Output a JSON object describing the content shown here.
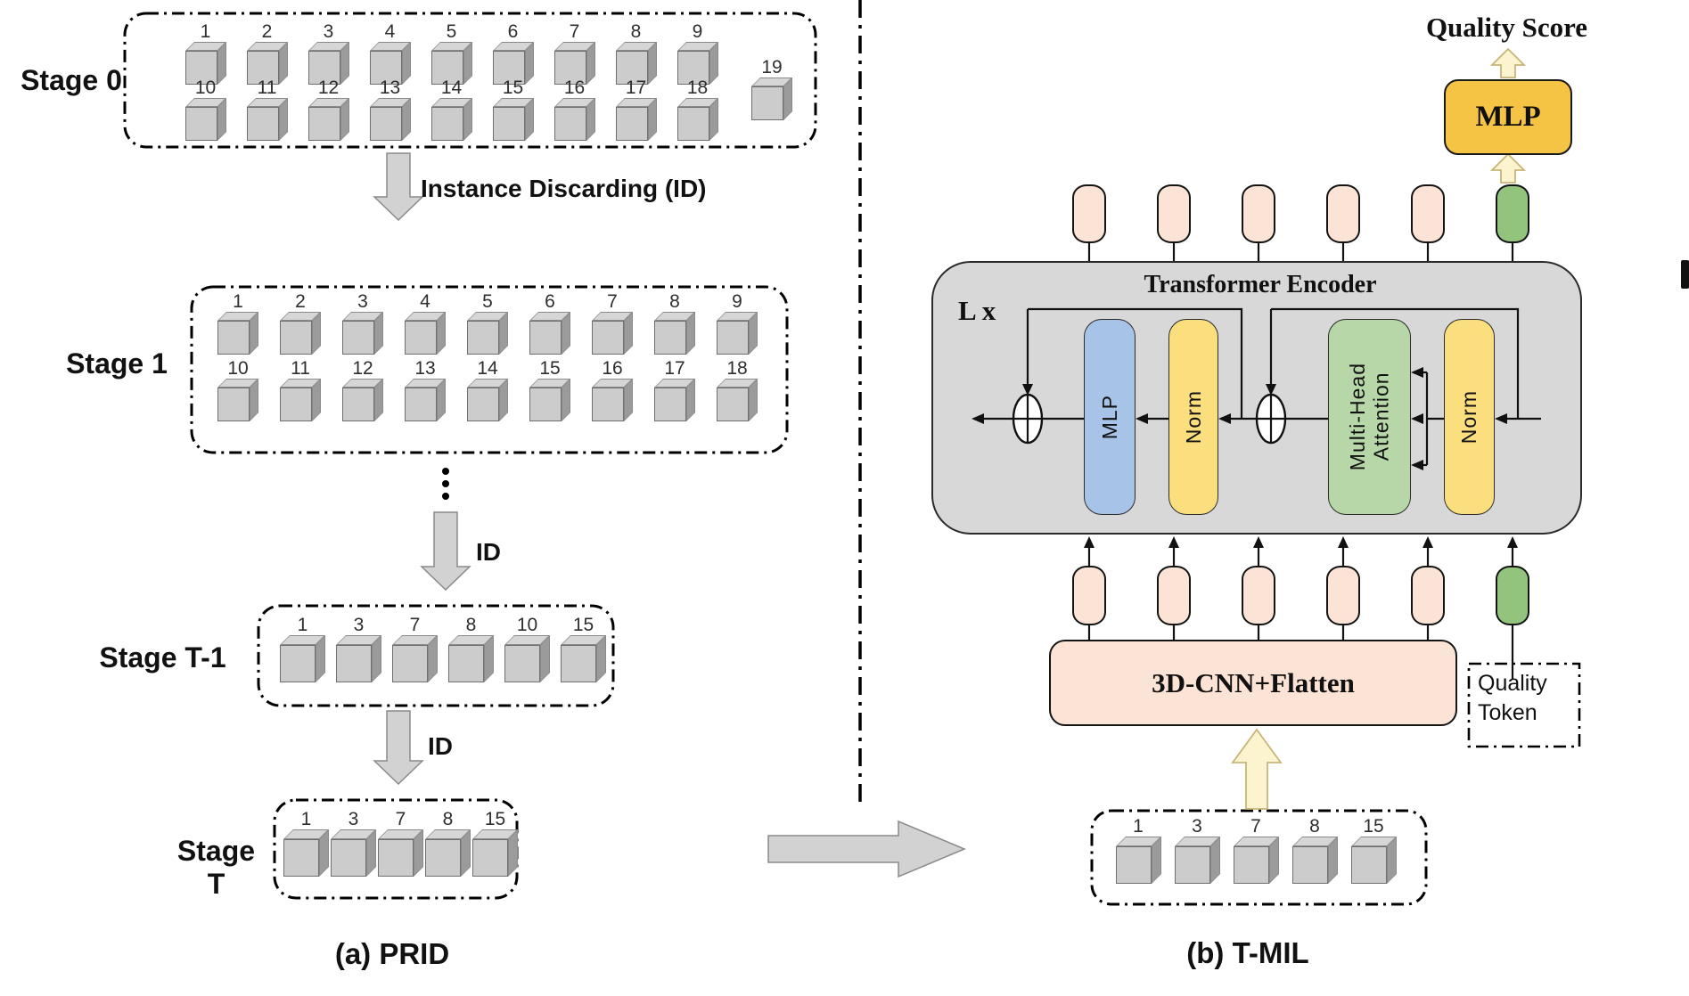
{
  "panel_a": {
    "caption": "(a) PRID",
    "arrow1_label": "Instance Discarding (ID)",
    "arrow2_label": "ID",
    "arrow3_label": "ID",
    "stages": [
      {
        "label": "Stage 0",
        "row1": [
          {
            "n": "1",
            "t": "a"
          },
          {
            "n": "2",
            "t": "b"
          },
          {
            "n": "3",
            "t": "c"
          },
          {
            "n": "4",
            "t": "c"
          },
          {
            "n": "5",
            "t": "c"
          },
          {
            "n": "6",
            "t": "d"
          },
          {
            "n": "7",
            "t": "c"
          },
          {
            "n": "8",
            "t": "e"
          },
          {
            "n": "9",
            "t": "e"
          }
        ],
        "row2": [
          {
            "n": "10",
            "t": "b"
          },
          {
            "n": "11",
            "t": "b"
          },
          {
            "n": "12",
            "t": "f"
          },
          {
            "n": "13",
            "t": "f"
          },
          {
            "n": "14",
            "t": "e"
          },
          {
            "n": "15",
            "t": "e"
          },
          {
            "n": "16",
            "t": "e"
          },
          {
            "n": "17",
            "t": "e"
          },
          {
            "n": "18",
            "t": "e"
          }
        ],
        "extra": [
          {
            "n": "19",
            "t": "e"
          }
        ]
      },
      {
        "label": "Stage 1",
        "row1": [
          {
            "n": "1",
            "t": "a"
          },
          {
            "n": "2",
            "t": "b"
          },
          {
            "n": "3",
            "t": "c"
          },
          {
            "n": "4",
            "t": "c"
          },
          {
            "n": "5",
            "t": "c"
          },
          {
            "n": "6",
            "t": "d"
          },
          {
            "n": "7",
            "t": "c"
          },
          {
            "n": "8",
            "t": "e"
          },
          {
            "n": "9",
            "t": "e"
          }
        ],
        "row2": [
          {
            "n": "10",
            "t": "b"
          },
          {
            "n": "11",
            "t": "b"
          },
          {
            "n": "12",
            "t": "f"
          },
          {
            "n": "13",
            "t": "f"
          },
          {
            "n": "14",
            "t": "e"
          },
          {
            "n": "15",
            "t": "e"
          },
          {
            "n": "16",
            "t": "e"
          },
          {
            "n": "17",
            "t": "e"
          },
          {
            "n": "18",
            "t": "e"
          }
        ]
      },
      {
        "label": "Stage T-1",
        "row1": [
          {
            "n": "1",
            "t": "a"
          },
          {
            "n": "3",
            "t": "c"
          },
          {
            "n": "7",
            "t": "c"
          },
          {
            "n": "8",
            "t": "e"
          },
          {
            "n": "10",
            "t": "b"
          },
          {
            "n": "15",
            "t": "e"
          }
        ]
      },
      {
        "label": "Stage T",
        "row1": [
          {
            "n": "1",
            "t": "a"
          },
          {
            "n": "3",
            "t": "c"
          },
          {
            "n": "7",
            "t": "c"
          },
          {
            "n": "8",
            "t": "e"
          },
          {
            "n": "15",
            "t": "e"
          }
        ]
      }
    ]
  },
  "panel_b": {
    "caption": "(b) T-MIL",
    "quality_score_label": "Quality Score",
    "mlp_box_label": "MLP",
    "encoder": {
      "title": "Transformer Encoder",
      "loop_label": "L x",
      "mlp_pill": "MLP",
      "norm1": "Norm",
      "mha_line1": "Multi-Head",
      "mha_line2": "Attention",
      "norm2": "Norm"
    },
    "cnn_label": "3D-CNN+Flatten",
    "quality_token_line1": "Quality",
    "quality_token_line2": "Token",
    "cubes": [
      {
        "n": "1",
        "t": "a"
      },
      {
        "n": "3",
        "t": "c"
      },
      {
        "n": "7",
        "t": "c"
      },
      {
        "n": "8",
        "t": "e"
      },
      {
        "n": "15",
        "t": "e"
      }
    ]
  },
  "colors": {
    "peach": "#fbe3d5",
    "green": "#93c47d",
    "blue": "#a8c3e8",
    "norm-yellow": "#fbdf7e",
    "mha-green": "#b7d7a9",
    "encoder-gray": "#d8d8d8",
    "mlp-gold": "#f6c445",
    "arrow-gray": "#d2d2d2",
    "arrow-yellow": "#fcf3cf"
  }
}
